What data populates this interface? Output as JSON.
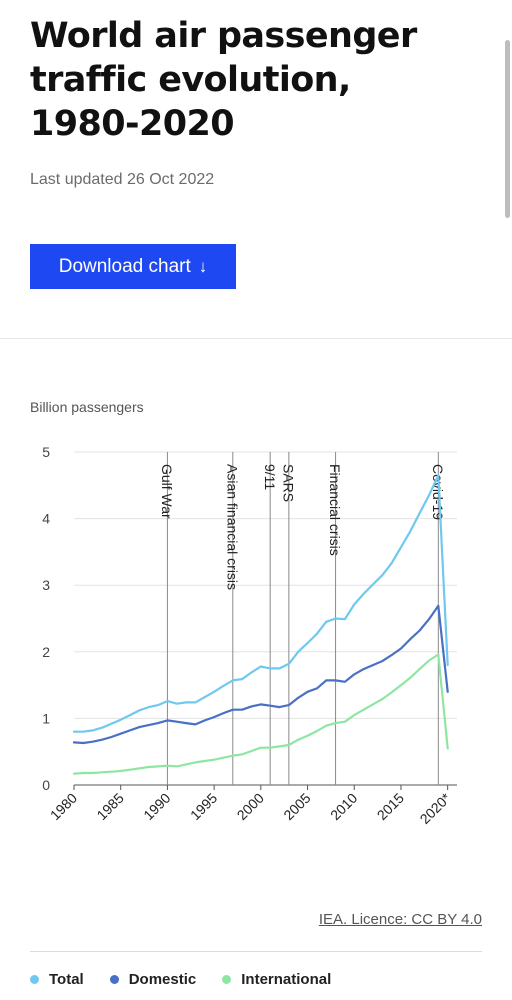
{
  "page": {
    "title": "World air passenger traffic evolution, 1980-2020",
    "updated": "Last updated 26 Oct 2022",
    "download_label": "Download chart",
    "download_icon": "arrow-down-icon",
    "licence": "IEA. Licence: CC BY 4.0"
  },
  "chart_data": {
    "type": "line",
    "ylabel": "Billion passengers",
    "xlabel": "",
    "ylim": [
      0,
      5
    ],
    "xlim": [
      1980,
      2021
    ],
    "yticks": [
      "0",
      "1",
      "2",
      "3",
      "4",
      "5"
    ],
    "xticks": [
      "1980",
      "1985",
      "1990",
      "1995",
      "2000",
      "2005",
      "2010",
      "2015",
      "2020*"
    ],
    "grid": true,
    "legend_position": "bottom",
    "x": [
      1980,
      1981,
      1982,
      1983,
      1984,
      1985,
      1986,
      1987,
      1988,
      1989,
      1990,
      1991,
      1992,
      1993,
      1994,
      1995,
      1996,
      1997,
      1998,
      1999,
      2000,
      2001,
      2002,
      2003,
      2004,
      2005,
      2006,
      2007,
      2008,
      2009,
      2010,
      2011,
      2012,
      2013,
      2014,
      2015,
      2016,
      2017,
      2018,
      2019,
      2020
    ],
    "series": [
      {
        "name": "Total",
        "color": "#6fc8ef",
        "values": [
          0.8,
          0.8,
          0.82,
          0.86,
          0.92,
          0.98,
          1.05,
          1.12,
          1.17,
          1.2,
          1.26,
          1.22,
          1.24,
          1.24,
          1.32,
          1.4,
          1.49,
          1.57,
          1.59,
          1.69,
          1.78,
          1.75,
          1.75,
          1.82,
          2.0,
          2.13,
          2.27,
          2.45,
          2.5,
          2.49,
          2.71,
          2.87,
          3.01,
          3.15,
          3.33,
          3.57,
          3.81,
          4.08,
          4.35,
          4.65,
          1.8
        ]
      },
      {
        "name": "Domestic",
        "color": "#4a6fc7",
        "values": [
          0.64,
          0.63,
          0.65,
          0.68,
          0.72,
          0.77,
          0.82,
          0.87,
          0.9,
          0.93,
          0.97,
          0.95,
          0.93,
          0.91,
          0.97,
          1.02,
          1.08,
          1.13,
          1.13,
          1.18,
          1.21,
          1.19,
          1.17,
          1.2,
          1.31,
          1.4,
          1.45,
          1.57,
          1.57,
          1.55,
          1.66,
          1.74,
          1.8,
          1.86,
          1.95,
          2.05,
          2.19,
          2.32,
          2.49,
          2.69,
          1.4
        ]
      },
      {
        "name": "International",
        "color": "#8ee6a3",
        "values": [
          0.17,
          0.18,
          0.18,
          0.19,
          0.2,
          0.21,
          0.23,
          0.25,
          0.27,
          0.28,
          0.29,
          0.28,
          0.31,
          0.34,
          0.36,
          0.38,
          0.41,
          0.44,
          0.46,
          0.51,
          0.56,
          0.56,
          0.58,
          0.6,
          0.68,
          0.74,
          0.81,
          0.89,
          0.93,
          0.95,
          1.05,
          1.13,
          1.21,
          1.29,
          1.39,
          1.5,
          1.61,
          1.74,
          1.87,
          1.96,
          0.55
        ]
      }
    ],
    "annotations": [
      {
        "x": 1990,
        "label": "Gulf War"
      },
      {
        "x": 1997,
        "label": "Asian financial crisis"
      },
      {
        "x": 2001,
        "label": "9/11"
      },
      {
        "x": 2003,
        "label": "SARS"
      },
      {
        "x": 2008,
        "label": "Financial crisis"
      },
      {
        "x": 2019,
        "label": "Covid-19"
      }
    ]
  }
}
